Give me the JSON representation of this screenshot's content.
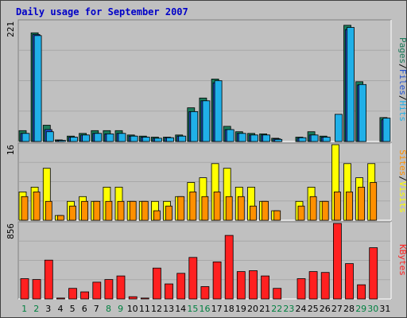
{
  "title": "Daily usage for September 2007",
  "colors": {
    "pages": "#1a7a5a",
    "files": "#2050d0",
    "hits": "#20b0e8",
    "visits": "#ffff00",
    "sites": "#ff9000",
    "kbytes": "#ff2020",
    "weekend_label": "#008040",
    "weekday_label": "#000000"
  },
  "chart_data": [
    {
      "type": "bar",
      "name": "hits-files-pages",
      "categories": [
        "1",
        "2",
        "3",
        "4",
        "5",
        "6",
        "7",
        "8",
        "9",
        "10",
        "11",
        "12",
        "13",
        "14",
        "15",
        "16",
        "17",
        "18",
        "19",
        "20",
        "21",
        "22",
        "23",
        "24",
        "25",
        "26",
        "27",
        "28",
        "29",
        "30",
        "31"
      ],
      "ylim": [
        0,
        221
      ],
      "ytick_label": "221",
      "side_label": {
        "parts": [
          "Pages",
          "/",
          "Files",
          "/",
          "Hits"
        ]
      },
      "series": [
        {
          "name": "Pages",
          "color": "#1a7a5a",
          "values": [
            20,
            200,
            30,
            3,
            10,
            15,
            20,
            20,
            20,
            12,
            10,
            8,
            8,
            12,
            62,
            80,
            115,
            28,
            18,
            15,
            14,
            6,
            0,
            8,
            18,
            10,
            0,
            214,
            110,
            0,
            44
          ]
        },
        {
          "name": "Files",
          "color": "#2050d0",
          "values": [
            15,
            197,
            22,
            2,
            8,
            12,
            15,
            14,
            15,
            10,
            8,
            6,
            7,
            10,
            55,
            75,
            108,
            22,
            15,
            12,
            12,
            5,
            0,
            6,
            12,
            8,
            0,
            206,
            104,
            0,
            40
          ]
        },
        {
          "name": "Hits",
          "color": "#20b0e8",
          "values": [
            15,
            195,
            18,
            2,
            8,
            12,
            15,
            14,
            15,
            10,
            8,
            6,
            7,
            10,
            55,
            75,
            112,
            22,
            15,
            12,
            12,
            4,
            0,
            7,
            12,
            8,
            50,
            210,
            105,
            0,
            43
          ]
        }
      ]
    },
    {
      "type": "bar",
      "name": "visits-sites",
      "categories": [
        "1",
        "2",
        "3",
        "4",
        "5",
        "6",
        "7",
        "8",
        "9",
        "10",
        "11",
        "12",
        "13",
        "14",
        "15",
        "16",
        "17",
        "18",
        "19",
        "20",
        "21",
        "22",
        "23",
        "24",
        "25",
        "26",
        "27",
        "28",
        "29",
        "30",
        "31"
      ],
      "ylim": [
        0,
        16
      ],
      "ytick_label": "16",
      "side_label": {
        "parts": [
          "Sites",
          "/",
          "Visits"
        ]
      },
      "series": [
        {
          "name": "Visits",
          "color": "#ffff00",
          "values": [
            6,
            7,
            11,
            1,
            4,
            5,
            4,
            7,
            7,
            4,
            4,
            4,
            4,
            5,
            8,
            9,
            12,
            11,
            7,
            7,
            4,
            2,
            0,
            4,
            7,
            4,
            16,
            12,
            9,
            12,
            0
          ]
        },
        {
          "name": "Sites",
          "color": "#ff9000",
          "values": [
            5,
            6,
            4,
            1,
            3,
            4,
            4,
            4,
            4,
            4,
            4,
            2,
            3,
            5,
            6,
            5,
            6,
            5,
            5,
            3,
            4,
            2,
            0,
            3,
            5,
            4,
            6,
            6,
            7,
            8,
            0
          ]
        }
      ]
    },
    {
      "type": "bar",
      "name": "kbytes",
      "categories": [
        "1",
        "2",
        "3",
        "4",
        "5",
        "6",
        "7",
        "8",
        "9",
        "10",
        "11",
        "12",
        "13",
        "14",
        "15",
        "16",
        "17",
        "18",
        "19",
        "20",
        "21",
        "22",
        "23",
        "24",
        "25",
        "26",
        "27",
        "28",
        "29",
        "30",
        "31"
      ],
      "ylim": [
        0,
        856
      ],
      "ytick_label": "856",
      "side_label": {
        "parts": [
          "KBytes"
        ]
      },
      "series": [
        {
          "name": "KBytes",
          "color": "#ff2020",
          "values": [
            230,
            220,
            440,
            10,
            120,
            80,
            190,
            220,
            260,
            25,
            10,
            350,
            170,
            290,
            470,
            140,
            420,
            720,
            310,
            320,
            260,
            120,
            0,
            230,
            310,
            300,
            856,
            400,
            160,
            580,
            0
          ]
        }
      ]
    }
  ],
  "x_labels": [
    {
      "text": "1",
      "weekend": true
    },
    {
      "text": "2",
      "weekend": true
    },
    {
      "text": "3",
      "weekend": false
    },
    {
      "text": "4",
      "weekend": false
    },
    {
      "text": "5",
      "weekend": false
    },
    {
      "text": "6",
      "weekend": false
    },
    {
      "text": "7",
      "weekend": false
    },
    {
      "text": "8",
      "weekend": true
    },
    {
      "text": "9",
      "weekend": true
    },
    {
      "text": "10",
      "weekend": false
    },
    {
      "text": "11",
      "weekend": false
    },
    {
      "text": "12",
      "weekend": false
    },
    {
      "text": "13",
      "weekend": false
    },
    {
      "text": "14",
      "weekend": false
    },
    {
      "text": "15",
      "weekend": true
    },
    {
      "text": "16",
      "weekend": true
    },
    {
      "text": "17",
      "weekend": false
    },
    {
      "text": "18",
      "weekend": false
    },
    {
      "text": "19",
      "weekend": false
    },
    {
      "text": "20",
      "weekend": false
    },
    {
      "text": "21",
      "weekend": false
    },
    {
      "text": "22",
      "weekend": true
    },
    {
      "text": "23",
      "weekend": true
    },
    {
      "text": "24",
      "weekend": false
    },
    {
      "text": "25",
      "weekend": false
    },
    {
      "text": "26",
      "weekend": false
    },
    {
      "text": "27",
      "weekend": false
    },
    {
      "text": "28",
      "weekend": false
    },
    {
      "text": "29",
      "weekend": true
    },
    {
      "text": "30",
      "weekend": true
    },
    {
      "text": "31",
      "weekend": false
    }
  ]
}
